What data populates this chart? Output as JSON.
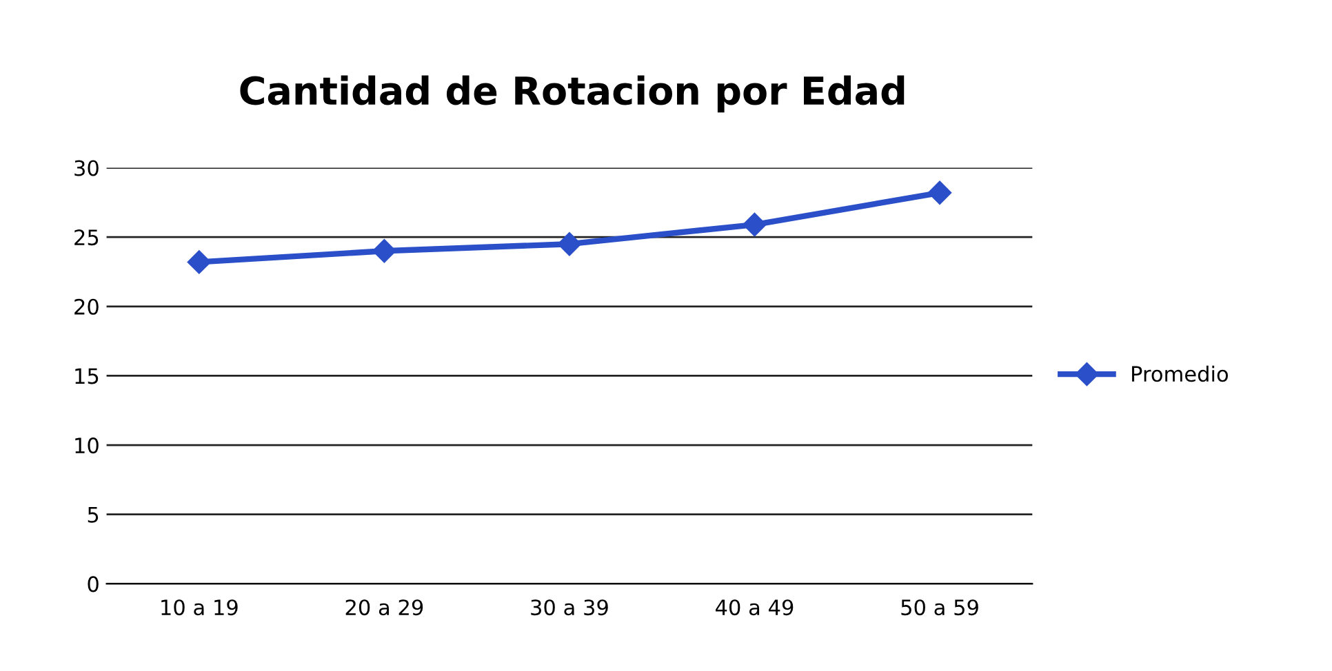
{
  "chart_data": {
    "type": "line",
    "title": "Cantidad de Rotacion por Edad",
    "categories": [
      "10 a 19",
      "20 a 29",
      "30 a 39",
      "40 a 49",
      "50 a 59"
    ],
    "series": [
      {
        "name": "Promedio",
        "color": "#2a4fc8",
        "values": [
          23.2,
          24.0,
          24.5,
          25.9,
          28.2
        ]
      }
    ],
    "ylim": [
      0,
      30
    ],
    "yticks": [
      0,
      5,
      10,
      15,
      20,
      25,
      30
    ],
    "grid": "y",
    "legend": "right",
    "marker": "diamond",
    "line_style": "solid"
  }
}
